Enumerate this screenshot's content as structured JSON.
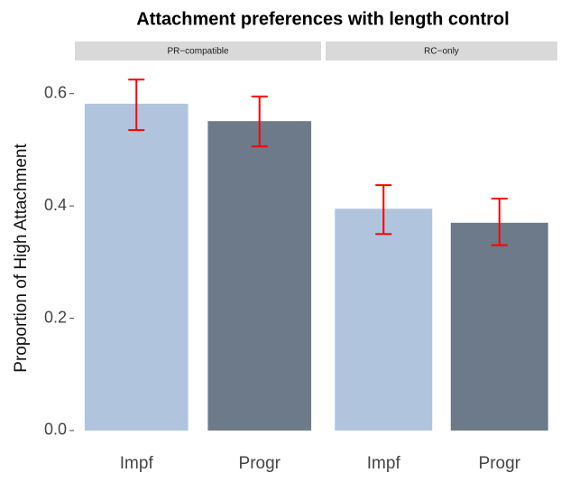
{
  "chart_data": {
    "type": "bar",
    "title": "Attachment preferences with length control",
    "y_label": "Proportion of High Attachment",
    "ylim": [
      -0.029,
      0.651
    ],
    "yticks": [
      {
        "value": 0,
        "label": "0.0"
      },
      {
        "value": 0.2,
        "label": "0.2"
      },
      {
        "value": 0.4,
        "label": "0.4"
      },
      {
        "value": 0.6,
        "label": "0.6"
      }
    ],
    "error_color": "#ff0000",
    "facets": [
      {
        "label": "PR−compatible",
        "categories": [
          "Impf",
          "Progr"
        ],
        "colors": [
          "#b0c4de",
          "#6c7a89"
        ],
        "values": [
          0.582,
          0.551
        ],
        "lower": [
          0.535,
          0.506
        ],
        "upper": [
          0.625,
          0.595
        ]
      },
      {
        "label": "RC−only",
        "categories": [
          "Impf",
          "Progr"
        ],
        "colors": [
          "#b0c4de",
          "#6c7a89"
        ],
        "values": [
          0.395,
          0.37
        ],
        "lower": [
          0.35,
          0.33
        ],
        "upper": [
          0.437,
          0.413
        ]
      }
    ]
  }
}
